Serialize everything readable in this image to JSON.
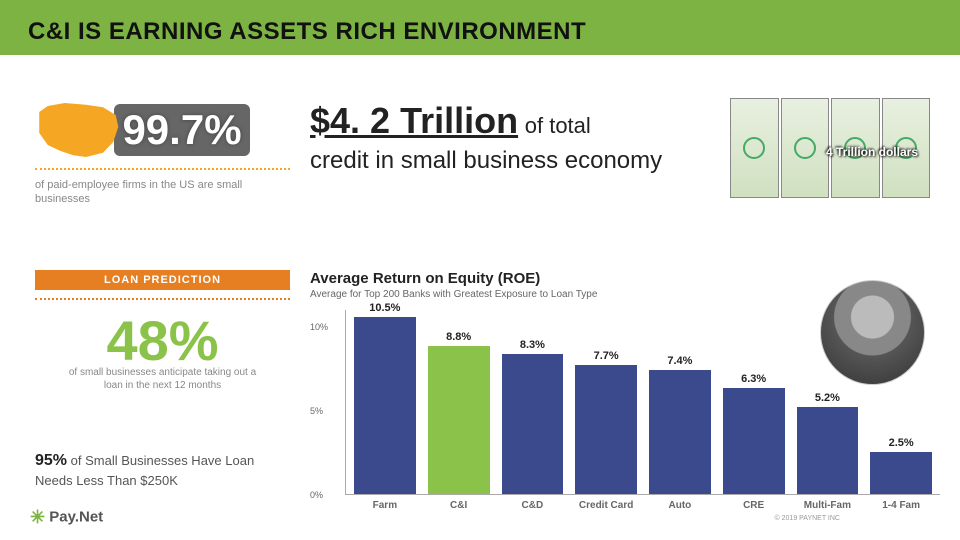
{
  "title": "C&I IS EARNING ASSETS RICH ENVIRONMENT",
  "stat997": {
    "value": "99.7%",
    "caption": "of paid-employee firms in the US are small businesses",
    "map_color": "#f5a623"
  },
  "loan_prediction": {
    "banner": "LOAN PREDICTION",
    "value": "48%",
    "value_color": "#8bc34a",
    "caption": "of small businesses anticipate taking out a loan in the next 12 months"
  },
  "stat95": {
    "bold": "95%",
    "text": " of Small Businesses Have Loan Needs Less Than $250K"
  },
  "logo": {
    "icon": "✳",
    "text": "Pay.Net"
  },
  "headline": {
    "big": "$4. 2 Trillion",
    "mid": "of total",
    "rest": "credit in small business economy"
  },
  "dollars_label": "4 Trillion dollars",
  "chart": {
    "title": "Average Return on Equity (ROE)",
    "subtitle": "Average for Top 200 Banks with Greatest Exposure to Loan Type",
    "ylim": [
      0,
      11
    ],
    "yticks": [
      {
        "v": 10,
        "l": "10%"
      },
      {
        "v": 5,
        "l": "5%"
      },
      {
        "v": 0,
        "l": "0%"
      }
    ],
    "bars": [
      {
        "label": "Farm",
        "value": 10.5,
        "text": "10.5%",
        "color": "#3b4a8c"
      },
      {
        "label": "C&I",
        "value": 8.8,
        "text": "8.8%",
        "color": "#8bc34a"
      },
      {
        "label": "C&D",
        "value": 8.3,
        "text": "8.3%",
        "color": "#3b4a8c"
      },
      {
        "label": "Credit Card",
        "value": 7.7,
        "text": "7.7%",
        "color": "#3b4a8c"
      },
      {
        "label": "Auto",
        "value": 7.4,
        "text": "7.4%",
        "color": "#3b4a8c"
      },
      {
        "label": "CRE",
        "value": 6.3,
        "text": "6.3%",
        "color": "#3b4a8c"
      },
      {
        "label": "Multi-Fam",
        "value": 5.2,
        "text": "5.2%",
        "color": "#3b4a8c"
      },
      {
        "label": "1-4 Fam",
        "value": 2.5,
        "text": "2.5%",
        "color": "#3b4a8c"
      }
    ],
    "bar_colors_default": "#3b4a8c",
    "grid_color": "#e0e0e0"
  },
  "copyright": "© 2019 PAYNET INC"
}
